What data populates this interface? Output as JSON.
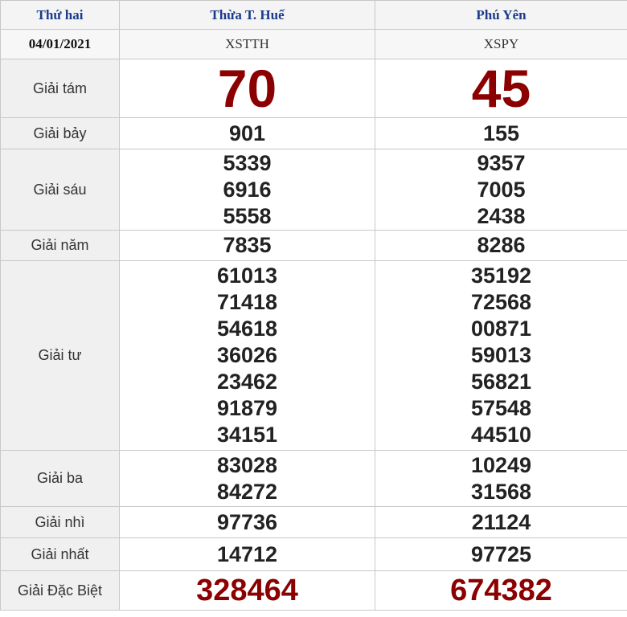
{
  "header": {
    "day": "Thứ hai",
    "date": "04/01/2021"
  },
  "provinces": [
    {
      "name": "Thừa T. Huế",
      "code": "XSTTH"
    },
    {
      "name": "Phú Yên",
      "code": "XSPY"
    }
  ],
  "prizes": [
    {
      "label": "Giải tám",
      "values": [
        [
          "70"
        ],
        [
          "45"
        ]
      ]
    },
    {
      "label": "Giải bảy",
      "values": [
        [
          "901"
        ],
        [
          "155"
        ]
      ]
    },
    {
      "label": "Giải sáu",
      "values": [
        [
          "5339",
          "6916",
          "5558"
        ],
        [
          "9357",
          "7005",
          "2438"
        ]
      ]
    },
    {
      "label": "Giải năm",
      "values": [
        [
          "7835"
        ],
        [
          "8286"
        ]
      ]
    },
    {
      "label": "Giải tư",
      "values": [
        [
          "61013",
          "71418",
          "54618",
          "36026",
          "23462",
          "91879",
          "34151"
        ],
        [
          "35192",
          "72568",
          "00871",
          "59013",
          "56821",
          "57548",
          "44510"
        ]
      ]
    },
    {
      "label": "Giải ba",
      "values": [
        [
          "83028",
          "84272"
        ],
        [
          "10249",
          "31568"
        ]
      ]
    },
    {
      "label": "Giải nhì",
      "values": [
        [
          "97736"
        ],
        [
          "21124"
        ]
      ]
    },
    {
      "label": "Giải nhất",
      "values": [
        [
          "14712"
        ],
        [
          "97725"
        ]
      ]
    },
    {
      "label": "Giải Đặc Biệt",
      "values": [
        [
          "328464"
        ],
        [
          "674382"
        ]
      ]
    }
  ],
  "colors": {
    "header_text": "#1a3a8c",
    "highlight": "#8b0000"
  }
}
